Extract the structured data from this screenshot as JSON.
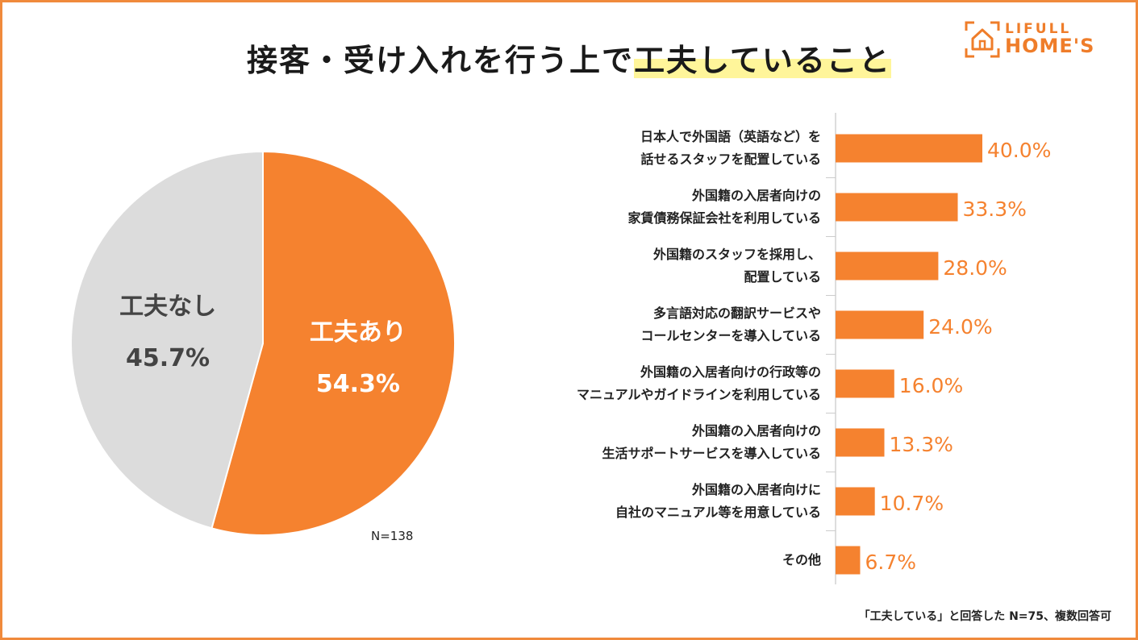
{
  "title": {
    "main": "接客・受け入れを行う上で",
    "highlight": "工夫していること"
  },
  "logo": {
    "top": "LIFULL",
    "bottom": "HOME'S"
  },
  "colors": {
    "accent": "#F5822F",
    "grey": "#DCDCDC",
    "frame": "#F08A3C",
    "highlight": "#FFF59A"
  },
  "pie_note": "N=138",
  "footnote": "「工夫している」と回答した N=75、複数回答可",
  "chart_data": [
    {
      "type": "pie",
      "slices": [
        {
          "label": "工夫あり",
          "value": 54.3,
          "value_label": "54.3%",
          "color": "#F5822F"
        },
        {
          "label": "工夫なし",
          "value": 45.7,
          "value_label": "45.7%",
          "color": "#DCDCDC"
        }
      ]
    },
    {
      "type": "bar",
      "orientation": "horizontal",
      "categories": [
        [
          "日本人で外国語（英語など）を",
          "話せるスタッフを配置している"
        ],
        [
          "外国籍の入居者向けの",
          "家賃債務保証会社を利用している"
        ],
        [
          "外国籍のスタッフを採用し、",
          "配置している"
        ],
        [
          "多言語対応の翻訳サービスや",
          "コールセンターを導入している"
        ],
        [
          "外国籍の入居者向けの行政等の",
          "マニュアルやガイドラインを利用している"
        ],
        [
          "外国籍の入居者向けの",
          "生活サポートサービスを導入している"
        ],
        [
          "外国籍の入居者向けに",
          "自社のマニュアル等を用意している"
        ],
        [
          "その他"
        ]
      ],
      "values": [
        40.0,
        33.3,
        28.0,
        24.0,
        16.0,
        13.3,
        10.7,
        6.7
      ],
      "value_labels": [
        "40.0%",
        "33.3%",
        "28.0%",
        "24.0%",
        "16.0%",
        "13.3%",
        "10.7%",
        "6.7%"
      ],
      "unit": "%",
      "xlim": [
        0,
        100
      ]
    }
  ]
}
